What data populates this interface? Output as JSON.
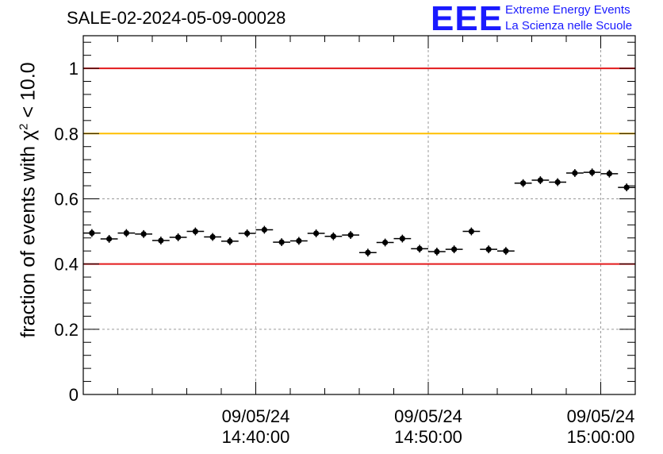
{
  "title": "SALE-02-2024-05-09-00028",
  "logo": {
    "mark": "EEE",
    "line1": "Extreme Energy Events",
    "line2": "La Scienza nelle Scuole"
  },
  "chart_data": {
    "type": "scatter",
    "title": "SALE-02-2024-05-09-00028",
    "xlabel": "",
    "ylabel_prefix": "fraction of events with χ",
    "ylabel_sup": "2",
    "ylabel_suffix": " < 10.0",
    "x_unit": "minutes after 09/05/24 14:30:00",
    "xlim": [
      0,
      32
    ],
    "ylim": [
      0,
      1.1
    ],
    "y_ticks": [
      0,
      0.2,
      0.4,
      0.6,
      0.8,
      1
    ],
    "y_tick_labels": [
      "0",
      "0.2",
      "0.4",
      "0.6",
      "0.8",
      "1"
    ],
    "x_ticks": [
      {
        "x": 10,
        "date": "09/05/24",
        "time": "14:40:00"
      },
      {
        "x": 20,
        "date": "09/05/24",
        "time": "14:50:00"
      },
      {
        "x": 30,
        "date": "09/05/24",
        "time": "15:00:00"
      }
    ],
    "grid": true,
    "reference_lines": [
      {
        "y": 1.0,
        "color": "#e31a1c"
      },
      {
        "y": 0.8,
        "color": "#ffbf00"
      },
      {
        "y": 0.4,
        "color": "#e31a1c"
      }
    ],
    "bin_half_width": 0.5,
    "points_x": [
      0.5,
      1.5,
      2.5,
      3.5,
      4.5,
      5.5,
      6.5,
      7.5,
      8.5,
      9.5,
      10.5,
      11.5,
      12.5,
      13.5,
      14.5,
      15.5,
      16.5,
      17.5,
      18.5,
      19.5,
      20.5,
      21.5,
      22.5,
      23.5,
      24.5,
      25.5,
      26.5,
      27.5,
      28.5,
      29.5,
      30.5,
      31.5
    ],
    "points_y": [
      0.495,
      0.477,
      0.495,
      0.492,
      0.472,
      0.482,
      0.5,
      0.483,
      0.47,
      0.494,
      0.505,
      0.467,
      0.471,
      0.494,
      0.485,
      0.489,
      0.435,
      0.466,
      0.478,
      0.447,
      0.438,
      0.445,
      0.5,
      0.445,
      0.44,
      0.648,
      0.657,
      0.651,
      0.679,
      0.681,
      0.677,
      0.635
    ],
    "error_y": 0.012,
    "marker_color": "#000000"
  }
}
